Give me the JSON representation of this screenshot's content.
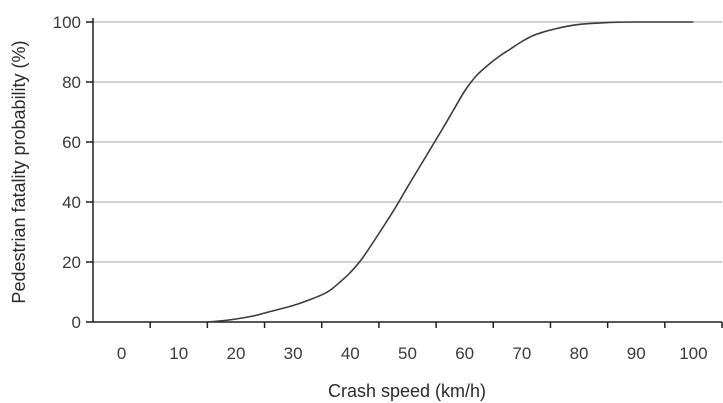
{
  "chart_data": {
    "type": "line",
    "title": "",
    "xlabel": "Crash speed (km/h)",
    "ylabel": "Pedestrian fatality probability (%)",
    "xlim": [
      -5,
      105
    ],
    "ylim": [
      0,
      100
    ],
    "xticks": [
      0,
      10,
      20,
      30,
      40,
      50,
      60,
      70,
      80,
      90,
      100
    ],
    "yticks": [
      0,
      20,
      40,
      60,
      80,
      100
    ],
    "grid": "horizontal",
    "legend": "none",
    "series": [
      {
        "x": [
          15,
          18,
          20,
          23,
          26,
          30,
          33,
          36,
          38,
          40,
          42,
          45,
          48,
          50,
          53,
          56,
          58,
          60,
          62,
          64,
          66,
          68,
          70,
          72,
          74,
          76,
          78,
          80,
          83,
          86,
          90,
          95,
          100
        ],
        "y": [
          0,
          0.5,
          1,
          2,
          3.5,
          5.5,
          7.5,
          10,
          13,
          16.5,
          21,
          29.5,
          38.5,
          45,
          54.5,
          64,
          70.5,
          77,
          82,
          85.5,
          88.5,
          91,
          93.5,
          95.5,
          96.8,
          97.8,
          98.6,
          99.2,
          99.6,
          99.9,
          100,
          100,
          100
        ],
        "color": "#3c3c3c"
      }
    ],
    "colors": {
      "line": "#3c3c3c",
      "grid": "#b8b8b8",
      "axis": "#1f1f1f"
    }
  }
}
